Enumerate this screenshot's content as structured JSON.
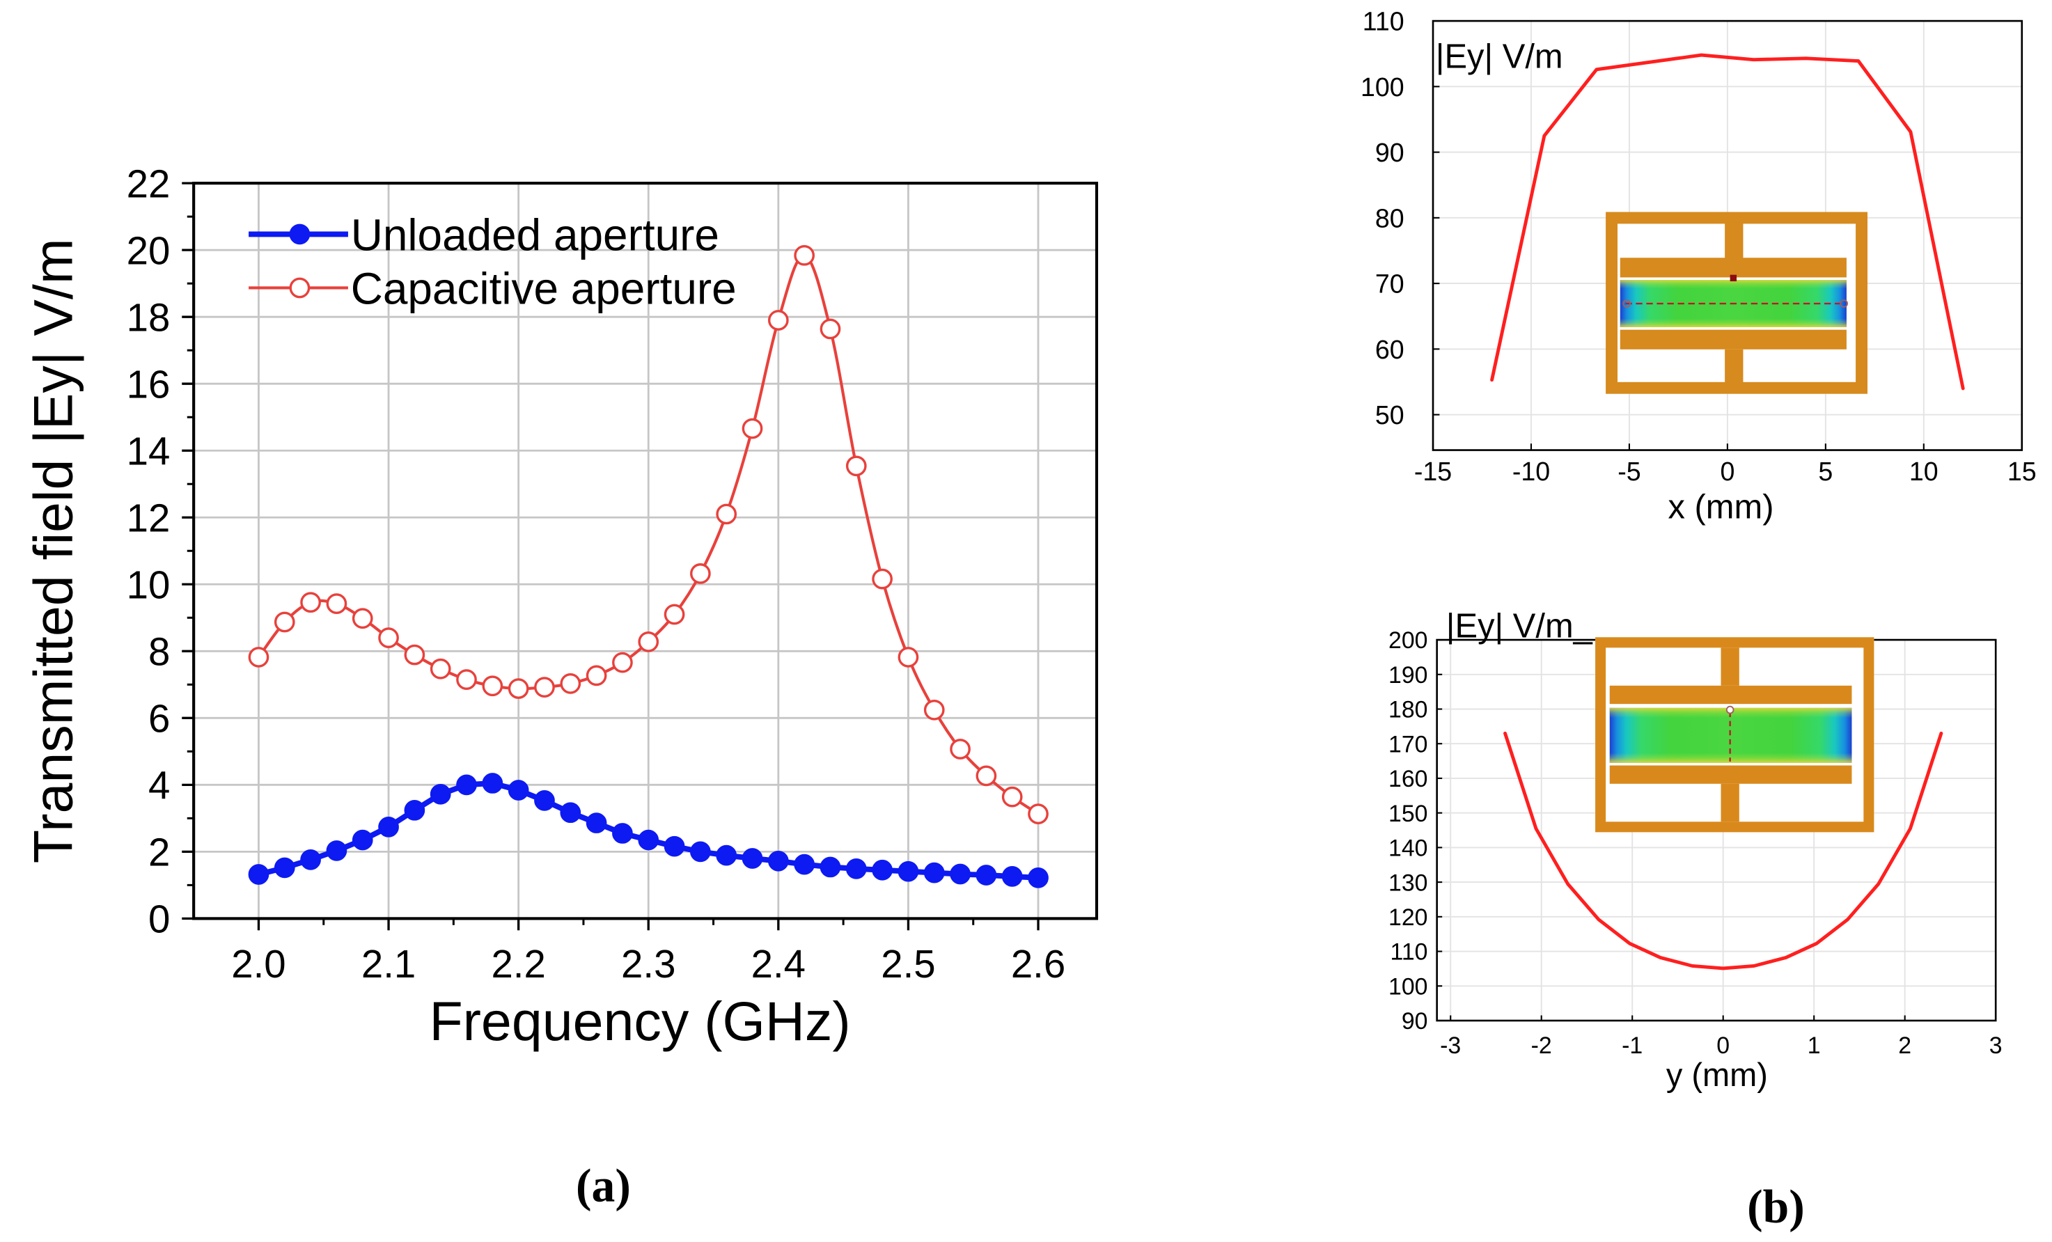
{
  "panel_labels": {
    "a": "(a)",
    "b": "(b)"
  },
  "chart_data": [
    {
      "type": "line",
      "title": "",
      "xlabel": "Frequency (GHz)",
      "ylabel": "Transmitted field |Ey| V/m",
      "xlim": [
        1.95,
        2.645
      ],
      "ylim": [
        0,
        22
      ],
      "xticks": [
        2.0,
        2.1,
        2.2,
        2.3,
        2.4,
        2.5,
        2.6
      ],
      "xtick_labels": [
        "2.0",
        "2.1",
        "2.2",
        "2.3",
        "2.4",
        "2.5",
        "2.6"
      ],
      "yticks": [
        0,
        2,
        4,
        6,
        8,
        10,
        12,
        14,
        16,
        18,
        20,
        22
      ],
      "ytick_labels": [
        "0",
        "2",
        "4",
        "6",
        "8",
        "10",
        "12",
        "14",
        "16",
        "18",
        "20",
        "22"
      ],
      "grid": true,
      "legend_position": "top-left",
      "x": [
        2.0,
        2.02,
        2.04,
        2.06,
        2.08,
        2.1,
        2.12,
        2.14,
        2.16,
        2.18,
        2.2,
        2.22,
        2.24,
        2.26,
        2.28,
        2.3,
        2.32,
        2.34,
        2.36,
        2.38,
        2.4,
        2.42,
        2.44,
        2.46,
        2.48,
        2.5,
        2.52,
        2.54,
        2.56,
        2.58,
        2.6
      ],
      "series": [
        {
          "name": "Unloaded aperture",
          "color": "#0d1af2",
          "values": [
            1.32,
            1.52,
            1.76,
            2.03,
            2.35,
            2.74,
            3.24,
            3.72,
            4.0,
            4.05,
            3.84,
            3.53,
            3.17,
            2.86,
            2.55,
            2.35,
            2.16,
            2.0,
            1.89,
            1.8,
            1.72,
            1.62,
            1.54,
            1.49,
            1.45,
            1.41,
            1.37,
            1.33,
            1.3,
            1.26,
            1.22
          ]
        },
        {
          "name": "Capacitive aperture",
          "color": "#e8413c",
          "values": [
            7.82,
            8.87,
            9.46,
            9.42,
            8.98,
            8.4,
            7.89,
            7.47,
            7.15,
            6.96,
            6.88,
            6.92,
            7.03,
            7.27,
            7.66,
            8.28,
            9.1,
            10.32,
            12.1,
            14.66,
            17.9,
            19.84,
            17.64,
            13.54,
            10.16,
            7.82,
            6.24,
            5.07,
            4.27,
            3.64,
            3.13
          ]
        }
      ]
    },
    {
      "type": "line",
      "title": "",
      "annotation": "|Ey| V/m",
      "xlabel": "x (mm)",
      "xlim": [
        -15,
        15
      ],
      "ylim": [
        44.6,
        110
      ],
      "xticks": [
        -15,
        -10,
        -5,
        0,
        5,
        10,
        15
      ],
      "xtick_labels": [
        "-15",
        "-10",
        "-5",
        "0",
        "5",
        "10",
        "15"
      ],
      "yticks": [
        50,
        60,
        70,
        80,
        90,
        100,
        110
      ],
      "ytick_labels": [
        "50",
        "60",
        "70",
        "80",
        "90",
        "100",
        "110"
      ],
      "grid": true,
      "series": [
        {
          "color": "#ff1f1f",
          "x": [
            -12,
            -9.33,
            -6.67,
            -4,
            -1.33,
            1.33,
            4,
            6.67,
            9.33,
            12
          ],
          "values": [
            55.3,
            92.5,
            102.6,
            103.7,
            104.8,
            104.1,
            104.3,
            103.9,
            93.1,
            54.0
          ]
        }
      ]
    },
    {
      "type": "line",
      "title": "",
      "annotation": "|Ey| V/m_",
      "xlabel": "y (mm)",
      "xlim": [
        -3.15,
        3.0
      ],
      "ylim": [
        90,
        200
      ],
      "xticks": [
        -3,
        -2,
        -1,
        0,
        1,
        2,
        3
      ],
      "xtick_labels": [
        "-3",
        "-2",
        "-1",
        "0",
        "1",
        "2",
        "3"
      ],
      "yticks": [
        90,
        100,
        110,
        120,
        130,
        140,
        150,
        160,
        170,
        180,
        190,
        200
      ],
      "ytick_labels": [
        "90",
        "100",
        "110",
        "120",
        "130",
        "140",
        "150",
        "160",
        "170",
        "180",
        "190",
        "200"
      ],
      "grid": true,
      "series": [
        {
          "color": "#ff1f1f",
          "x": [
            -2.4,
            -2.06,
            -1.71,
            -1.37,
            -1.03,
            -0.69,
            -0.34,
            0,
            0.34,
            0.69,
            1.03,
            1.37,
            1.71,
            2.06,
            2.4
          ],
          "values": [
            173,
            145.5,
            129.5,
            119.2,
            112.3,
            108.2,
            105.8,
            105.1,
            105.8,
            108.2,
            112.3,
            119.2,
            129.5,
            145.5,
            173
          ]
        }
      ]
    }
  ]
}
